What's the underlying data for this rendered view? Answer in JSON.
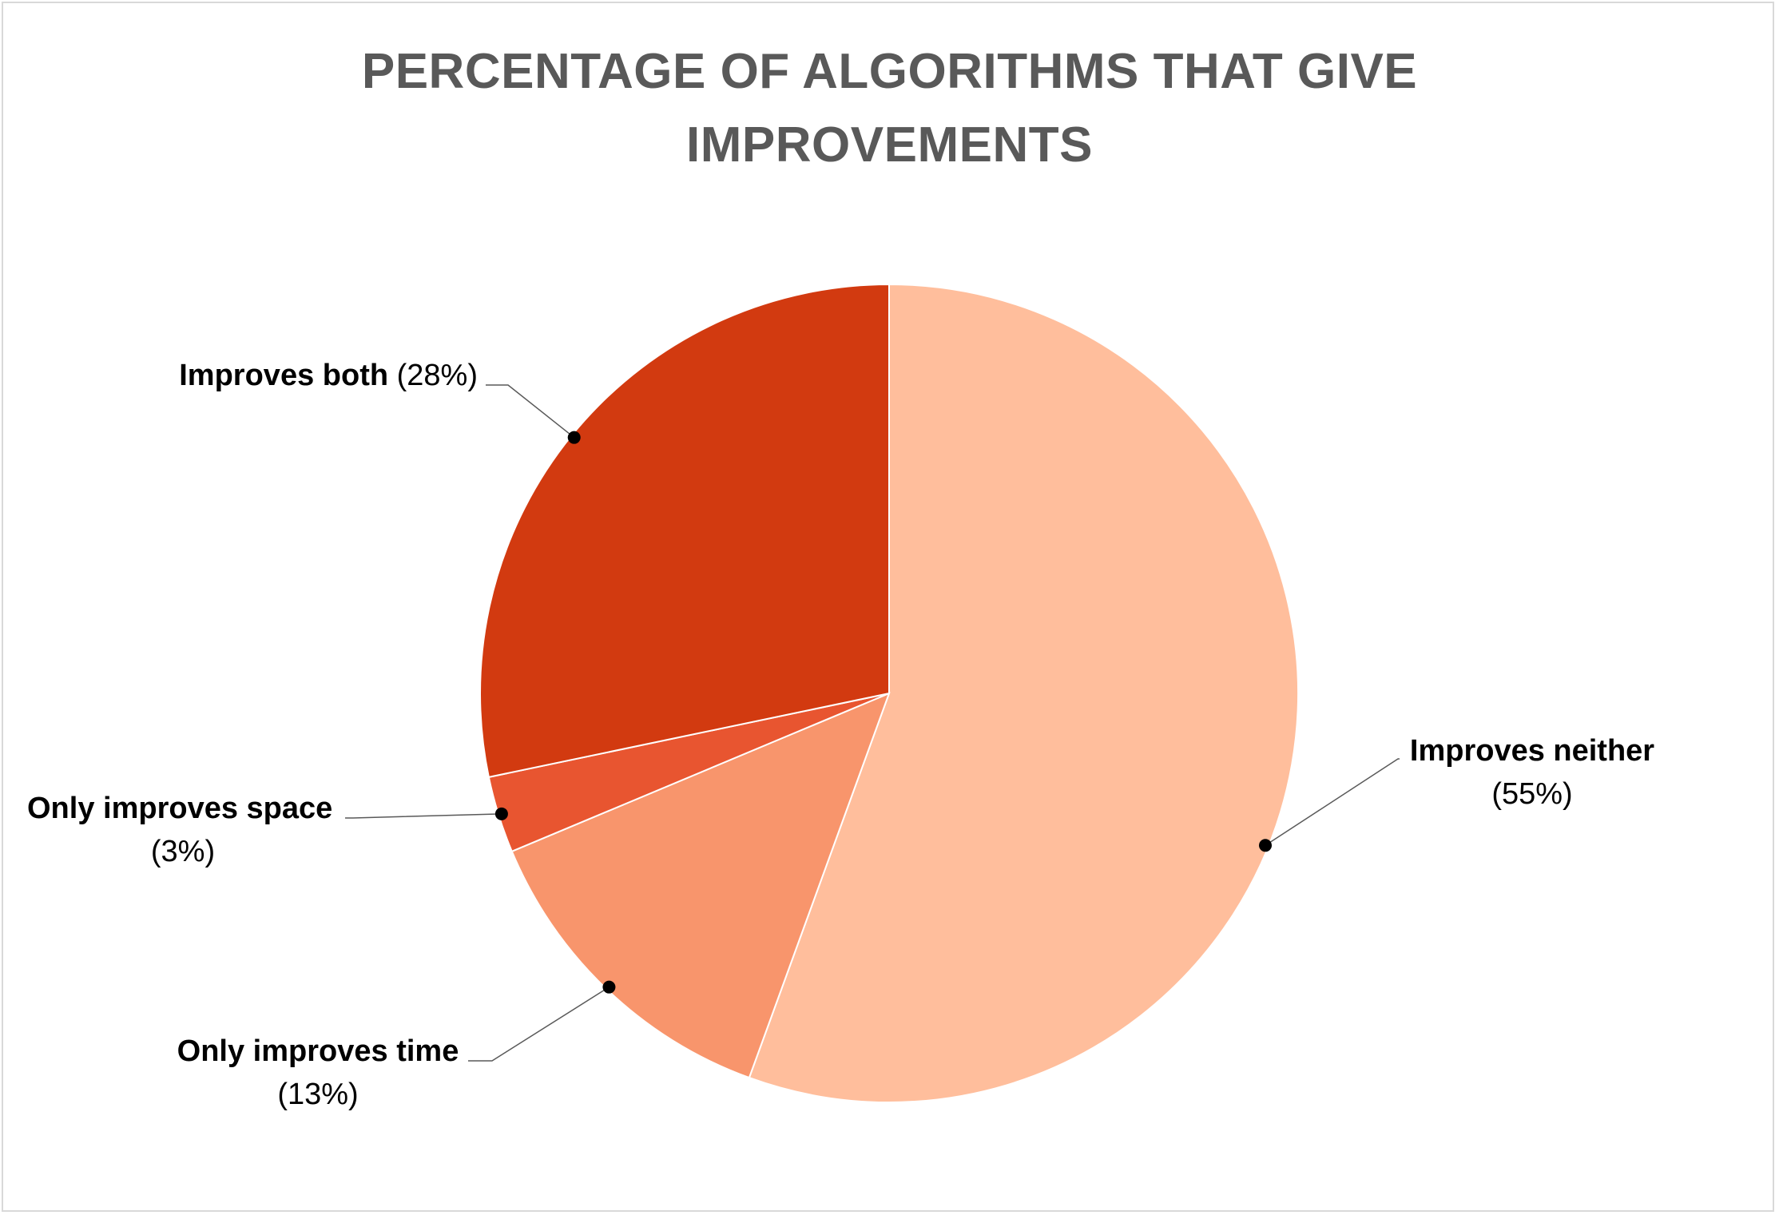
{
  "chart_data": {
    "type": "pie",
    "title": "PERCENTAGE OF ALGORITHMS THAT GIVE IMPROVEMENTS",
    "title_lines": [
      "PERCENTAGE OF ALGORITHMS THAT GIVE",
      "IMPROVEMENTS"
    ],
    "start_angle_deg": 0,
    "direction": "clockwise",
    "slices": [
      {
        "label": "Improves neither",
        "value": 55,
        "pct_label": "(55%)",
        "color": "#FFBE9C"
      },
      {
        "label": "Only improves time",
        "value": 13,
        "pct_label": "(13%)",
        "color": "#F8956C"
      },
      {
        "label": "Only improves space",
        "value": 3,
        "pct_label": "(3%)",
        "color": "#E85530"
      },
      {
        "label": "Improves both",
        "value": 28,
        "pct_label": "(28%)",
        "color": "#D23A10"
      }
    ],
    "legend": "none",
    "data_labels": "outside with leader lines"
  }
}
